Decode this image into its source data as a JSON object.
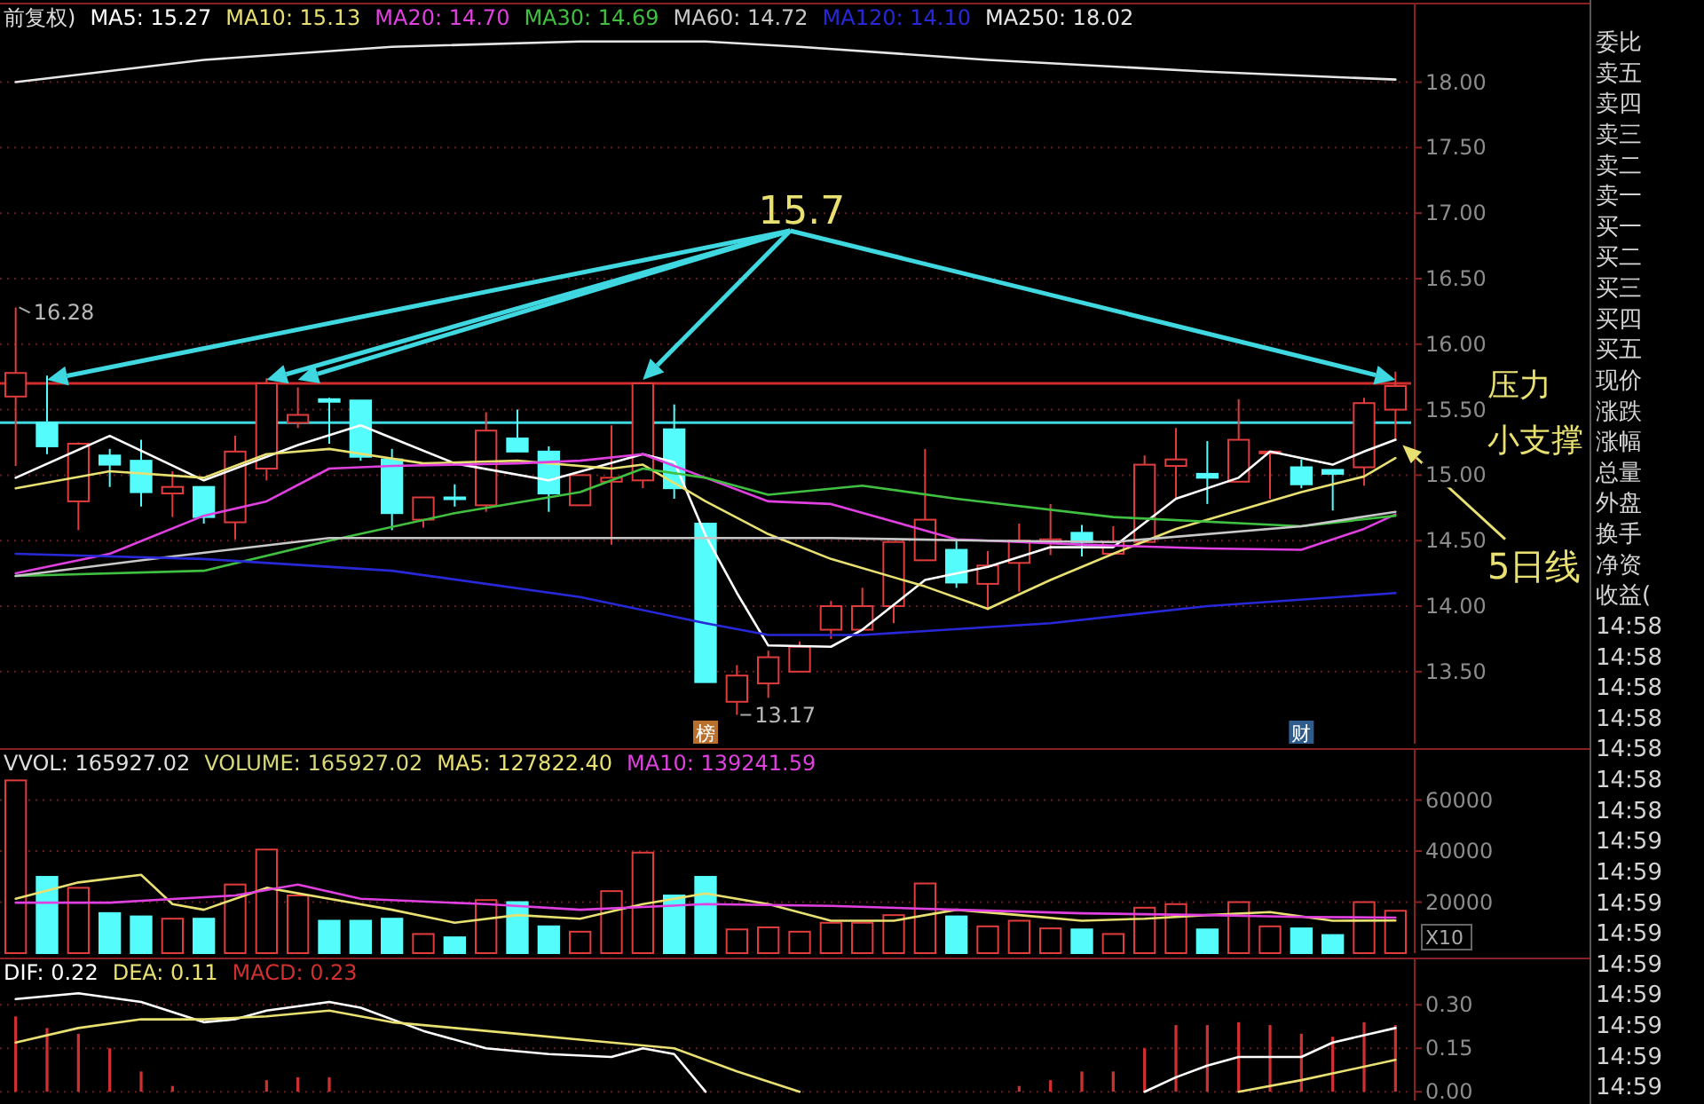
{
  "chart_data": [
    {
      "type": "candlestick",
      "title": "前复权)",
      "legend": "top",
      "grid": "y",
      "tick_labels": "y",
      "categories": [
        null,
        null,
        null,
        null,
        null,
        null,
        null,
        null,
        null,
        null,
        null,
        null,
        null,
        null,
        null,
        null,
        null,
        null,
        null,
        null,
        null,
        null,
        null,
        null,
        null,
        null,
        null,
        null,
        null,
        null,
        null,
        null,
        null,
        null,
        null,
        null,
        null,
        null,
        null,
        null,
        null,
        null,
        null,
        null,
        null
      ],
      "ohlc": [
        [
          15.6,
          16.28,
          15.07,
          15.78
        ],
        [
          15.4,
          15.76,
          15.16,
          15.22
        ],
        [
          14.8,
          15.25,
          14.58,
          15.24
        ],
        [
          15.15,
          15.2,
          14.91,
          15.08
        ],
        [
          15.11,
          15.27,
          14.76,
          14.87
        ],
        [
          14.86,
          15.03,
          14.68,
          14.91
        ],
        [
          14.91,
          14.91,
          14.63,
          14.68
        ],
        [
          14.64,
          15.3,
          14.51,
          15.18
        ],
        [
          15.05,
          15.74,
          14.96,
          15.7
        ],
        [
          15.4,
          15.67,
          15.36,
          15.46
        ],
        [
          15.58,
          15.59,
          15.24,
          15.56
        ],
        [
          15.57,
          15.57,
          15.11,
          15.14
        ],
        [
          15.12,
          15.2,
          14.58,
          14.71
        ],
        [
          14.66,
          14.83,
          14.6,
          14.83
        ],
        [
          14.83,
          14.93,
          14.76,
          14.82
        ],
        [
          14.77,
          15.48,
          14.72,
          15.34
        ],
        [
          15.28,
          15.5,
          15.18,
          15.18
        ],
        [
          15.18,
          15.22,
          14.72,
          14.86
        ],
        [
          14.77,
          15.0,
          14.77,
          15.0
        ],
        [
          14.95,
          15.38,
          14.47,
          14.98
        ],
        [
          14.96,
          15.7,
          14.9,
          15.7
        ],
        [
          15.35,
          15.54,
          14.82,
          14.9
        ],
        [
          14.63,
          14.63,
          13.42,
          13.42
        ],
        [
          13.27,
          13.55,
          13.17,
          13.47
        ],
        [
          13.41,
          13.66,
          13.3,
          13.61
        ],
        [
          13.5,
          13.73,
          13.5,
          13.69
        ],
        [
          13.82,
          14.04,
          13.75,
          14.0
        ],
        [
          13.82,
          14.14,
          13.82,
          14.0
        ],
        [
          14.0,
          14.49,
          13.87,
          14.49
        ],
        [
          14.35,
          15.2,
          14.35,
          14.66
        ],
        [
          14.43,
          14.51,
          14.14,
          14.18
        ],
        [
          14.17,
          14.42,
          13.97,
          14.31
        ],
        [
          14.33,
          14.63,
          14.11,
          14.5
        ],
        [
          14.49,
          14.78,
          14.39,
          14.51
        ],
        [
          14.56,
          14.62,
          14.38,
          14.49
        ],
        [
          14.4,
          14.61,
          14.39,
          14.49
        ],
        [
          14.49,
          15.15,
          14.49,
          15.08
        ],
        [
          15.07,
          15.36,
          14.82,
          15.12
        ],
        [
          15.01,
          15.26,
          14.78,
          14.98
        ],
        [
          14.95,
          15.58,
          14.95,
          15.27
        ],
        [
          15.17,
          15.18,
          14.82,
          15.18
        ],
        [
          15.06,
          15.12,
          14.9,
          14.93
        ],
        [
          15.04,
          15.04,
          14.73,
          15.01
        ],
        [
          15.06,
          15.59,
          14.92,
          15.55
        ],
        [
          15.5,
          15.79,
          15.26,
          15.68
        ]
      ],
      "colors": [
        "#e03c3c",
        "#54fcfc",
        "#e03c3c",
        "#54fcfc",
        "#54fcfc",
        "#e03c3c",
        "#54fcfc",
        "#e03c3c",
        "#e03c3c",
        "#e03c3c",
        "#54fcfc",
        "#54fcfc",
        "#54fcfc",
        "#e03c3c",
        "#54fcfc",
        "#e03c3c",
        "#54fcfc",
        "#54fcfc",
        "#e03c3c",
        "#e03c3c",
        "#e03c3c",
        "#54fcfc",
        "#54fcfc",
        "#e03c3c",
        "#e03c3c",
        "#e03c3c",
        "#e03c3c",
        "#e03c3c",
        "#e03c3c",
        "#e03c3c",
        "#54fcfc",
        "#e03c3c",
        "#e03c3c",
        "#e03c3c",
        "#54fcfc",
        "#e03c3c",
        "#e03c3c",
        "#e03c3c",
        "#54fcfc",
        "#e03c3c",
        "#e03c3c",
        "#54fcfc",
        "#54fcfc",
        "#e03c3c",
        "#e03c3c"
      ],
      "series": [
        {
          "name": "MA5: 15.27",
          "type": "line",
          "color": "#ffffff",
          "values": [
            14.98,
            null,
            null,
            15.3,
            null,
            null,
            14.96,
            null,
            null,
            15.23,
            null,
            15.38,
            null,
            null,
            15.09,
            null,
            null,
            14.96,
            null,
            null,
            15.16,
            15.1,
            14.54,
            14.1,
            13.7,
            null,
            13.69,
            13.82,
            null,
            14.2,
            null,
            14.3,
            null,
            14.45,
            null,
            14.45,
            null,
            14.82,
            null,
            14.98,
            15.18,
            null,
            15.08,
            15.18,
            15.27
          ]
        },
        {
          "name": "MA10: 15.13",
          "type": "line",
          "color": "#e8e070",
          "values": [
            14.9,
            null,
            null,
            15.03,
            null,
            null,
            14.98,
            null,
            15.16,
            null,
            15.2,
            null,
            null,
            15.09,
            null,
            null,
            15.11,
            null,
            null,
            15.05,
            15.08,
            null,
            14.8,
            null,
            14.55,
            null,
            14.36,
            null,
            null,
            14.15,
            null,
            13.98,
            null,
            14.2,
            null,
            14.4,
            null,
            14.59,
            null,
            14.73,
            null,
            14.87,
            null,
            14.99,
            15.13
          ]
        },
        {
          "name": "MA20: 14.70",
          "type": "line",
          "color": "#e040e0",
          "values": [
            14.25,
            null,
            null,
            14.4,
            null,
            null,
            14.69,
            null,
            14.8,
            null,
            15.05,
            null,
            15.07,
            null,
            null,
            null,
            15.09,
            null,
            15.11,
            null,
            15.16,
            null,
            14.98,
            null,
            14.8,
            null,
            14.78,
            null,
            null,
            null,
            14.51,
            null,
            null,
            null,
            14.47,
            null,
            null,
            null,
            14.44,
            null,
            null,
            14.43,
            null,
            14.59,
            14.7
          ]
        },
        {
          "name": "MA30: 14.69",
          "type": "line",
          "color": "#40c040",
          "values": [
            14.23,
            null,
            null,
            null,
            null,
            null,
            14.27,
            null,
            null,
            null,
            14.5,
            null,
            null,
            null,
            14.71,
            null,
            null,
            null,
            14.87,
            null,
            15.05,
            null,
            14.98,
            null,
            14.85,
            null,
            null,
            14.92,
            null,
            null,
            14.82,
            null,
            null,
            null,
            null,
            14.68,
            null,
            null,
            null,
            null,
            null,
            14.61,
            null,
            null,
            14.69
          ]
        },
        {
          "name": "MA60: 14.72",
          "type": "line",
          "color": "#c8c8c8",
          "values": [
            14.23,
            null,
            null,
            null,
            null,
            14.38,
            null,
            null,
            null,
            null,
            14.52,
            null,
            null,
            null,
            null,
            null,
            14.52,
            null,
            null,
            null,
            null,
            null,
            14.52,
            null,
            null,
            null,
            14.52,
            null,
            null,
            null,
            null,
            14.5,
            null,
            null,
            null,
            14.49,
            null,
            null,
            null,
            null,
            null,
            14.61,
            null,
            null,
            14.72
          ]
        },
        {
          "name": "MA120: 14.10",
          "type": "line",
          "color": "#2828d8",
          "values": [
            14.4,
            null,
            null,
            null,
            null,
            null,
            14.36,
            null,
            null,
            null,
            null,
            null,
            14.27,
            null,
            null,
            null,
            null,
            null,
            14.07,
            null,
            null,
            null,
            13.87,
            null,
            13.78,
            null,
            null,
            13.78,
            null,
            null,
            null,
            null,
            null,
            13.87,
            null,
            null,
            null,
            null,
            14.0,
            null,
            null,
            null,
            null,
            null,
            14.1
          ]
        },
        {
          "name": "MA250: 18.02",
          "type": "line",
          "color": "#e6e6e6",
          "values": [
            18.0,
            null,
            null,
            null,
            null,
            null,
            18.17,
            null,
            null,
            null,
            null,
            null,
            18.27,
            null,
            null,
            null,
            null,
            null,
            18.31,
            null,
            null,
            null,
            18.31,
            null,
            null,
            18.27,
            null,
            null,
            null,
            null,
            null,
            18.17,
            null,
            null,
            null,
            null,
            null,
            null,
            18.08,
            null,
            null,
            null,
            null,
            null,
            18.02
          ]
        }
      ],
      "ylim": [
        12.95,
        18.6
      ],
      "yticks": [
        {
          "value": 13.5,
          "label": "13.50"
        },
        {
          "value": 14,
          "label": "14.00"
        },
        {
          "value": 14.5,
          "label": "14.50"
        },
        {
          "value": 15,
          "label": "15.00"
        },
        {
          "value": 15.5,
          "label": "15.50"
        },
        {
          "value": 16,
          "label": "16.00"
        },
        {
          "value": 16.5,
          "label": "16.50"
        },
        {
          "value": 17,
          "label": "17.00"
        },
        {
          "value": 17.5,
          "label": "17.50"
        },
        {
          "value": 18,
          "label": "18.00"
        }
      ],
      "ref_lines": [
        {
          "axis": "y",
          "value": 15.7,
          "label": "压力",
          "color": "#d02c2c"
        },
        {
          "axis": "y",
          "value": 15.4,
          "label": "小支撑",
          "color": "#3fd8e0"
        }
      ],
      "annotations": [
        "15.7",
        "16.28",
        "13.17",
        "5日线",
        "榜",
        "财"
      ]
    },
    {
      "type": "bar",
      "title": "VVOL: 165927.02",
      "legend": "top left",
      "grid": "y",
      "tick_labels": "y",
      "categories": [
        null,
        null,
        null,
        null,
        null,
        null,
        null,
        null,
        null,
        null,
        null,
        null,
        null,
        null,
        null,
        null,
        null,
        null,
        null,
        null,
        null,
        null,
        null,
        null,
        null,
        null,
        null,
        null,
        null,
        null,
        null,
        null,
        null,
        null,
        null,
        null,
        null,
        null,
        null,
        null,
        null,
        null,
        null,
        null,
        null
      ],
      "series": [
        {
          "colors": [
            "#e03c3c",
            "#54fcfc",
            "#e03c3c",
            "#54fcfc",
            "#54fcfc",
            "#e03c3c",
            "#54fcfc",
            "#e03c3c",
            "#e03c3c",
            "#e03c3c",
            "#54fcfc",
            "#54fcfc",
            "#54fcfc",
            "#e03c3c",
            "#54fcfc",
            "#e03c3c",
            "#54fcfc",
            "#54fcfc",
            "#e03c3c",
            "#e03c3c",
            "#e03c3c",
            "#54fcfc",
            "#54fcfc",
            "#e03c3c",
            "#e03c3c",
            "#e03c3c",
            "#e03c3c",
            "#e03c3c",
            "#e03c3c",
            "#e03c3c",
            "#54fcfc",
            "#e03c3c",
            "#e03c3c",
            "#e03c3c",
            "#54fcfc",
            "#e03c3c",
            "#e03c3c",
            "#e03c3c",
            "#54fcfc",
            "#e03c3c",
            "#e03c3c",
            "#54fcfc",
            "#54fcfc",
            "#e03c3c",
            "#e03c3c"
          ],
          "values": [
            67700,
            29900,
            25600,
            15700,
            14400,
            13500,
            13500,
            26900,
            40600,
            22600,
            12700,
            12700,
            13500,
            7500,
            6200,
            20800,
            20000,
            10500,
            8400,
            24300,
            39400,
            22600,
            29900,
            9300,
            10100,
            8400,
            11900,
            11900,
            14900,
            27300,
            14400,
            10500,
            12700,
            9700,
            9300,
            7500,
            17800,
            19200,
            9300,
            20000,
            10500,
            9700,
            7100,
            20000,
            16600
          ]
        },
        {
          "name": "MA5: 127822.40",
          "type": "line",
          "color": "#e8e070",
          "values": [
            21300,
            null,
            27700,
            null,
            30700,
            19200,
            17000,
            null,
            25600,
            null,
            21300,
            null,
            17000,
            null,
            11900,
            null,
            14900,
            null,
            13500,
            null,
            19200,
            null,
            23400,
            null,
            19200,
            null,
            12700,
            null,
            12700,
            null,
            17000,
            null,
            14900,
            null,
            12700,
            null,
            13500,
            null,
            14900,
            null,
            16100,
            null,
            12700,
            null,
            12800
          ]
        },
        {
          "name": "MA10: 139241.59",
          "type": "line",
          "color": "#e040e0",
          "values": [
            19800,
            null,
            null,
            19800,
            null,
            null,
            null,
            22600,
            null,
            26900,
            null,
            21300,
            null,
            null,
            null,
            19200,
            null,
            null,
            17000,
            null,
            null,
            null,
            19200,
            null,
            null,
            null,
            18500,
            null,
            null,
            null,
            17000,
            null,
            null,
            null,
            15600,
            null,
            null,
            null,
            14900,
            null,
            null,
            14200,
            null,
            null,
            13900
          ]
        }
      ],
      "ylim": [
        0,
        80000
      ],
      "yticks": [
        20000,
        40000,
        60000
      ],
      "annotations": [
        "VOLUME: 165927.02",
        "X10"
      ]
    },
    {
      "type": "line",
      "legend": "top left",
      "grid": "y",
      "tick_labels": "y",
      "categories": [
        null,
        null,
        null,
        null,
        null,
        null,
        null,
        null,
        null,
        null,
        null,
        null,
        null,
        null,
        null,
        null,
        null,
        null,
        null,
        null,
        null,
        null,
        null,
        null,
        null,
        null,
        null,
        null,
        null,
        null,
        null,
        null,
        null,
        null,
        null,
        null,
        null,
        null,
        null,
        null,
        null,
        null,
        null,
        null,
        null
      ],
      "series": [
        {
          "name": "DIF: 0.22",
          "color": "#ffffff",
          "values": [
            0.32,
            null,
            0.34,
            null,
            0.31,
            null,
            0.24,
            0.25,
            0.28,
            null,
            0.31,
            0.29,
            null,
            0.21,
            null,
            0.15,
            null,
            0.13,
            null,
            0.12,
            0.15,
            0.13,
            0.0,
            null,
            null,
            null,
            null,
            null,
            null,
            null,
            null,
            null,
            null,
            null,
            null,
            null,
            0.0,
            0.05,
            0.09,
            0.12,
            0.12,
            0.12,
            0.17,
            null,
            0.22
          ]
        },
        {
          "name": "DEA: 0.11",
          "color": "#e8e070",
          "values": [
            0.17,
            null,
            0.22,
            null,
            0.25,
            null,
            0.25,
            null,
            0.26,
            null,
            0.28,
            null,
            0.24,
            null,
            0.22,
            null,
            0.2,
            null,
            0.18,
            null,
            0.16,
            0.15,
            null,
            0.07,
            null,
            0.0,
            null,
            null,
            null,
            null,
            null,
            null,
            null,
            null,
            null,
            null,
            null,
            null,
            null,
            0.0,
            null,
            0.04,
            null,
            null,
            0.11
          ]
        },
        {
          "name": "MACD: 0.23",
          "type": "bar",
          "color": "#d03030",
          "values": [
            0.26,
            0.22,
            0.2,
            0.15,
            0.07,
            0.02,
            null,
            null,
            0.04,
            0.05,
            0.05,
            null,
            null,
            null,
            null,
            null,
            null,
            null,
            null,
            null,
            null,
            null,
            null,
            null,
            null,
            null,
            null,
            null,
            null,
            null,
            null,
            null,
            0.02,
            0.04,
            0.07,
            0.07,
            0.15,
            0.23,
            0.23,
            0.24,
            0.23,
            0.2,
            0.19,
            0.24,
            0.23
          ]
        }
      ],
      "ylim": [
        -0.03,
        0.46
      ],
      "yticks": [
        {
          "value": 0,
          "label": "0.00"
        },
        {
          "value": 0.15,
          "label": "0.15"
        },
        {
          "value": 0.3,
          "label": "0.30"
        }
      ]
    },
    {
      "type": "other",
      "annotations": [
        "委比",
        "卖五",
        "卖四",
        "卖三",
        "卖二",
        "卖一",
        "买一",
        "买二",
        "买三",
        "买四",
        "买五",
        "现价",
        "涨跌",
        "涨幅",
        "总量",
        "外盘",
        "换手",
        "净资",
        "收益(",
        "14:58",
        "14:58",
        "14:58",
        "14:58",
        "14:58",
        "14:58",
        "14:58",
        "14:59",
        "14:59",
        "14:59",
        "14:59",
        "14:59",
        "14:59",
        "14:59",
        "14:59",
        "14:59"
      ]
    }
  ]
}
